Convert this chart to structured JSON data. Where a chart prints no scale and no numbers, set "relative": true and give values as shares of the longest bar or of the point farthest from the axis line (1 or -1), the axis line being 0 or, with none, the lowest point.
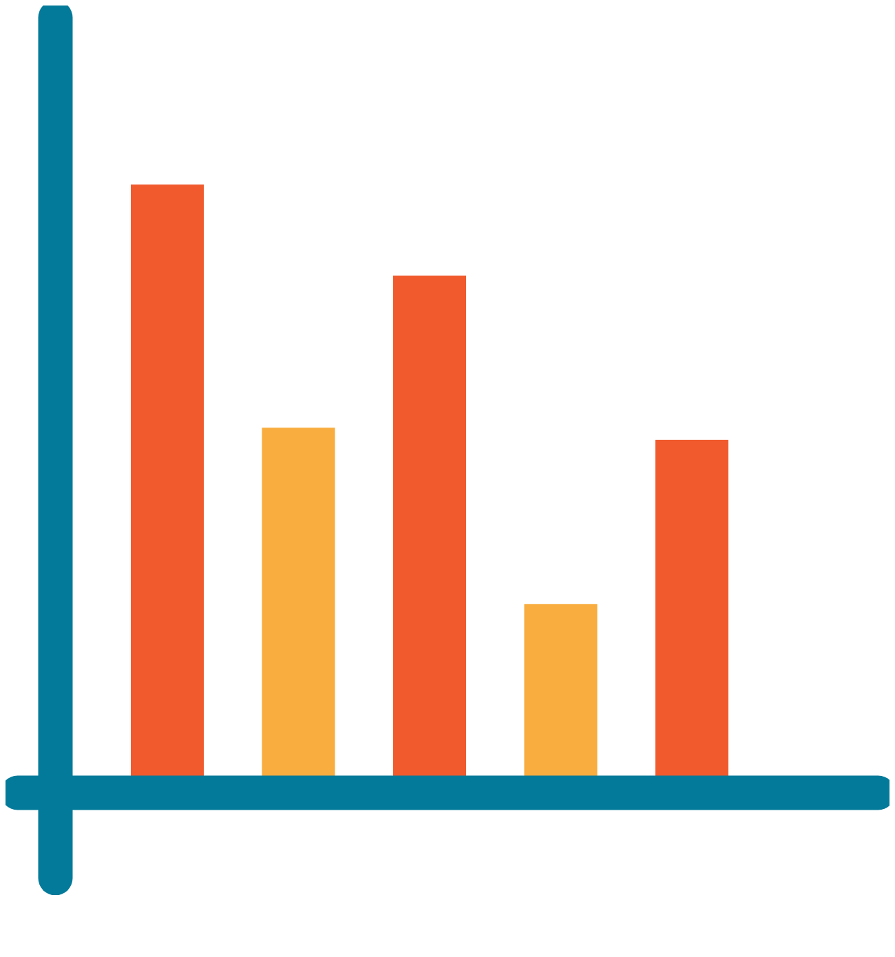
{
  "chart_data": {
    "type": "bar",
    "relative": true,
    "categories": [
      null,
      null,
      null,
      null,
      null
    ],
    "values": [
      1,
      0.6,
      0.85,
      0.31,
      0.58
    ],
    "colors": [
      "#f05a2d",
      "#f9ad3f",
      "#f05a2d",
      "#f9ad3f",
      "#f05a2d"
    ]
  }
}
